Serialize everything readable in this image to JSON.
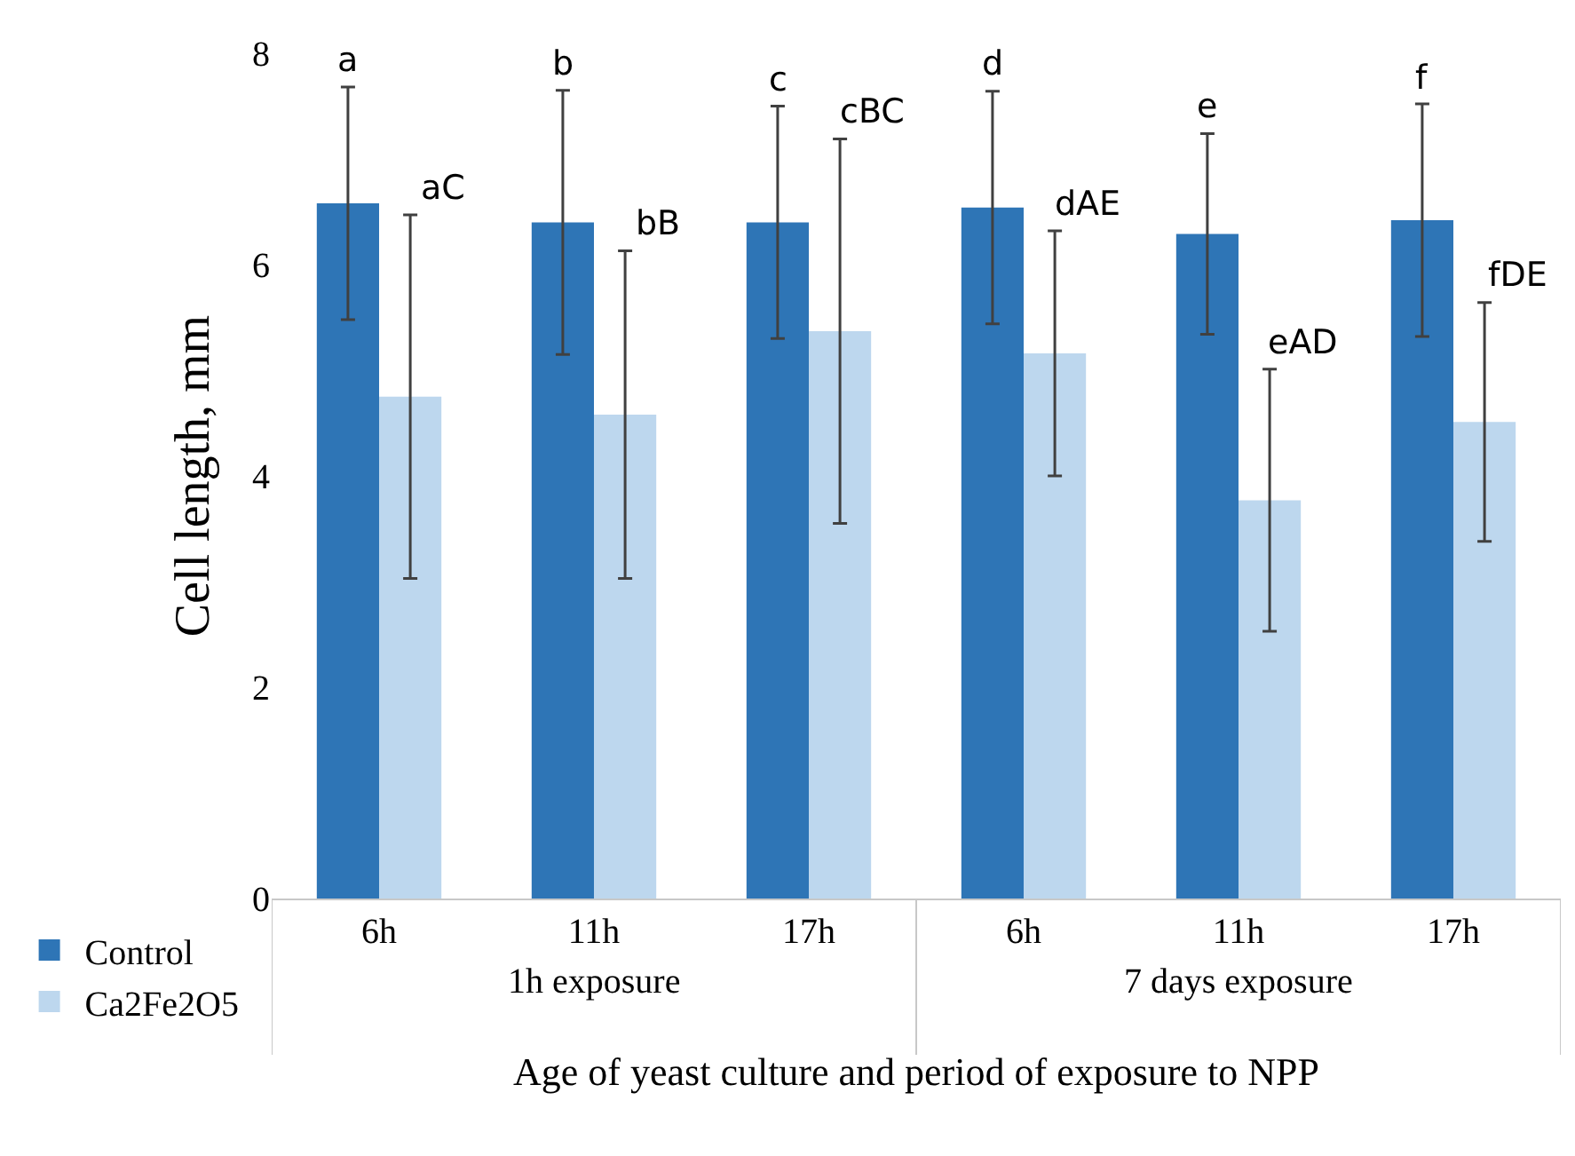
{
  "chart_data": {
    "type": "bar",
    "xlabel": "Age of yeast culture and period of exposure to NPP",
    "ylabel": "Cell length, mm",
    "categories": [
      "6h",
      "11h",
      "17h",
      "6h",
      "11h",
      "17h"
    ],
    "series": [
      {
        "name": "Control",
        "color": "#2e75b6",
        "values": [
          6.58,
          6.4,
          6.4,
          6.54,
          6.29,
          6.42
        ],
        "errors": [
          1.1,
          1.25,
          1.1,
          1.1,
          0.95,
          1.1
        ]
      },
      {
        "name": "Ca2Fe2O5",
        "color": "#bdd7ee",
        "values": [
          4.75,
          4.58,
          5.37,
          5.16,
          3.77,
          4.51
        ],
        "errors": [
          1.72,
          1.55,
          1.82,
          1.16,
          1.24,
          1.13
        ]
      }
    ],
    "annotations": [
      "a",
      "b",
      "c",
      "d",
      "e",
      "f",
      "aC",
      "bB",
      "cBC",
      "dAE",
      "eAD",
      "fDE",
      "1h exposure",
      "7 days exposure"
    ],
    "ylim": [
      0,
      8
    ],
    "yticks": [
      0,
      2,
      4,
      6,
      8
    ],
    "legend": "bottom left"
  }
}
